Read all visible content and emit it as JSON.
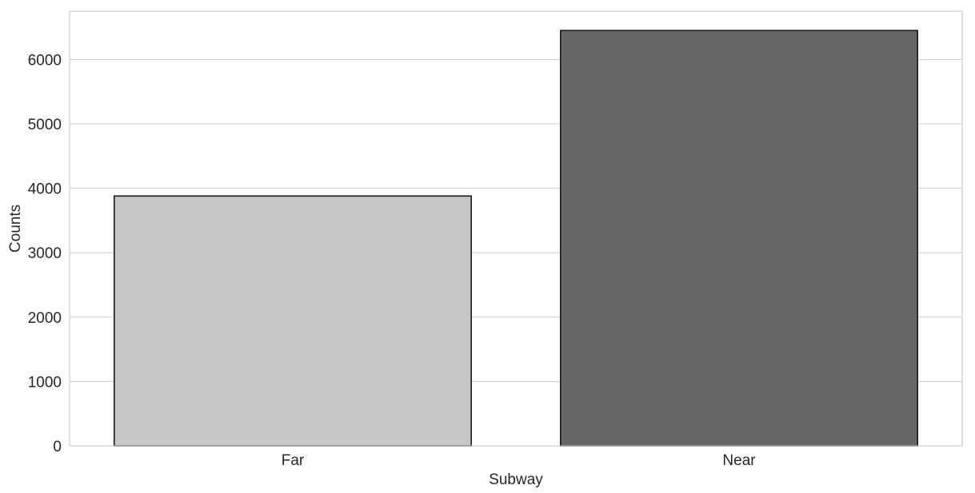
{
  "chart_data": {
    "type": "bar",
    "categories": [
      "Far",
      "Near"
    ],
    "values": [
      3880,
      6450
    ],
    "bar_colors": [
      "#c6c6c6",
      "#676767"
    ],
    "bar_edge_color": "#1a1a1a",
    "grid_color": "#cccccc",
    "frame_color": "#cccccc",
    "xlabel": "Subway",
    "ylabel": "Counts",
    "ylim": [
      0,
      6750
    ],
    "yticks": [
      0,
      1000,
      2000,
      3000,
      4000,
      5000,
      6000
    ],
    "grid": true
  }
}
